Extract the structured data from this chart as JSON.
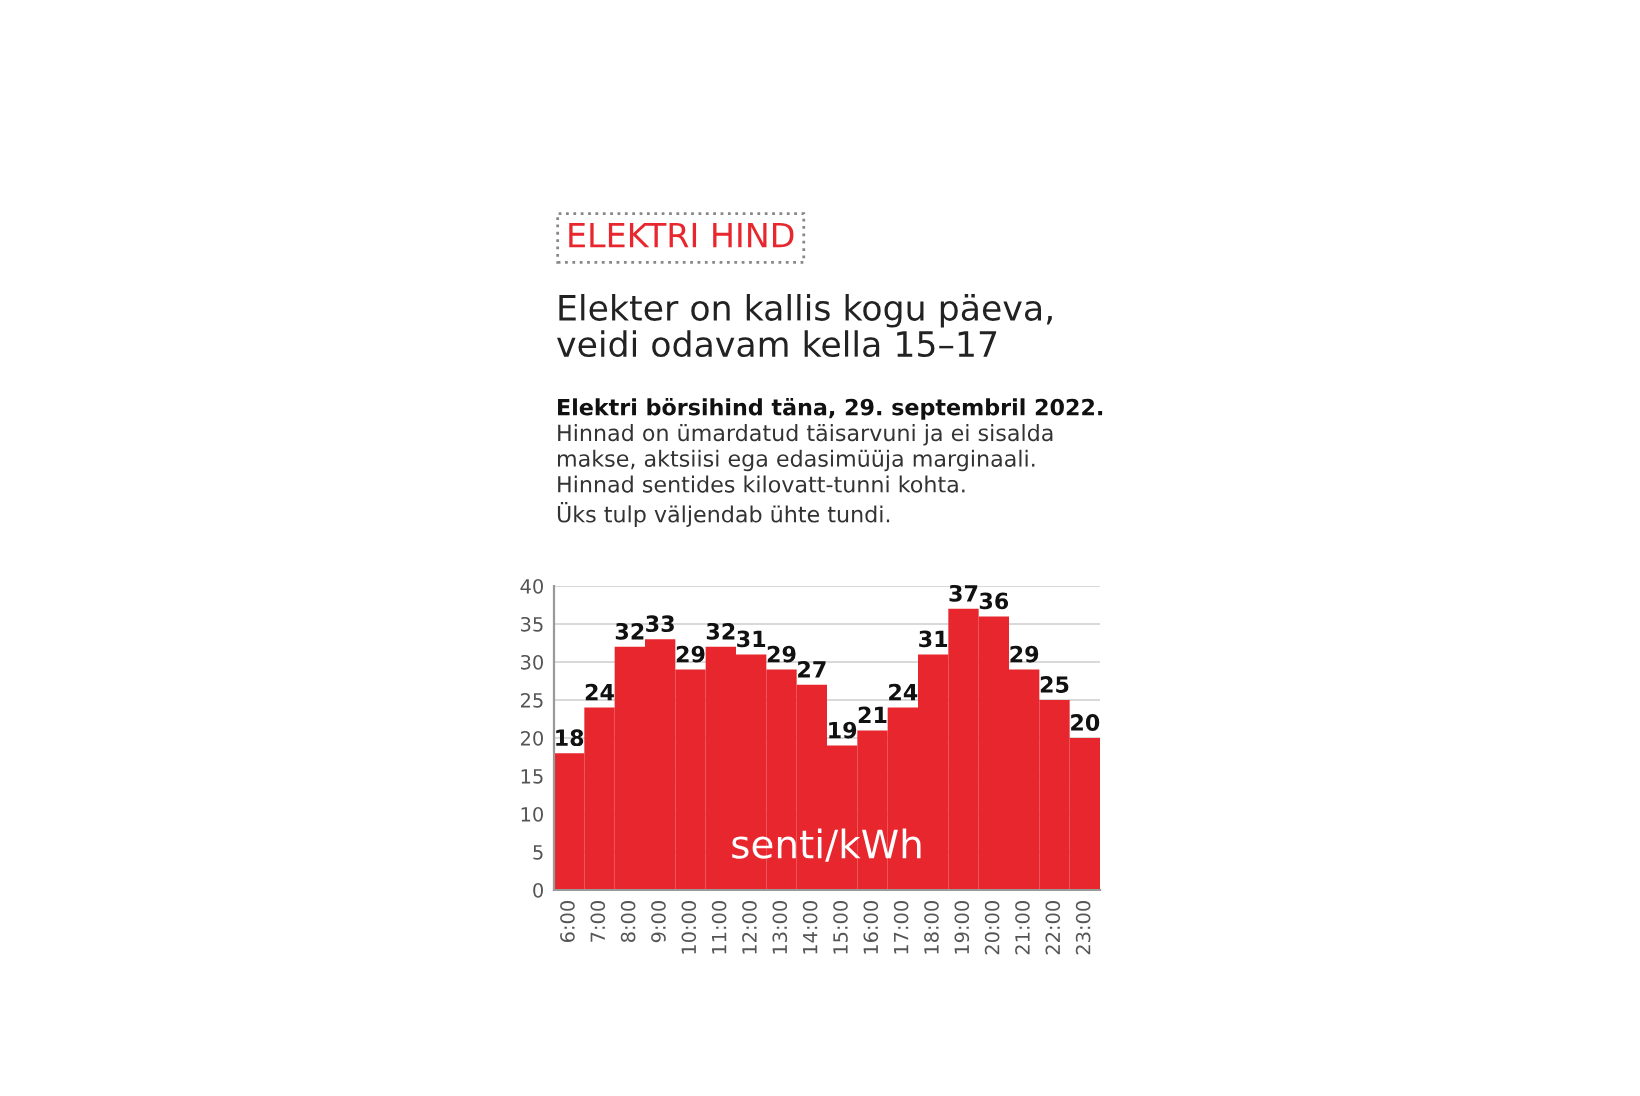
{
  "chart_data": {
    "type": "bar",
    "title": "ELEKTRI HIND",
    "subtitle": "Elekter on kallis kogu päeva,\nveidi odavam kella 15–17",
    "annotations": [
      "Elektri börsihind täna, 29. septembril 2022.",
      "Hinnad on ümardatud täisarvuni ja ei sisalda\nmakse, aktsiisi ega edasimüüja marginaali.\nHinnad sentides kilovatt-tunni kohta.\nÜks tulp väljendab ühte tundi.",
      "senti/kWh"
    ],
    "categories": [
      "6:00",
      "7:00",
      "8:00",
      "9:00",
      "10:00",
      "11:00",
      "12:00",
      "13:00",
      "14:00",
      "15:00",
      "16:00",
      "17:00",
      "18:00",
      "19:00",
      "20:00",
      "21:00",
      "22:00",
      "23:00"
    ],
    "values": [
      18,
      24,
      32,
      33,
      29,
      32,
      31,
      29,
      27,
      19,
      21,
      24,
      31,
      37,
      36,
      29,
      25,
      20
    ],
    "color": "#e8262d",
    "ylim": [
      0,
      40
    ],
    "yticks": [
      0,
      5,
      10,
      15,
      20,
      25,
      30,
      35,
      40
    ],
    "grid": "y",
    "data_labels": true
  }
}
